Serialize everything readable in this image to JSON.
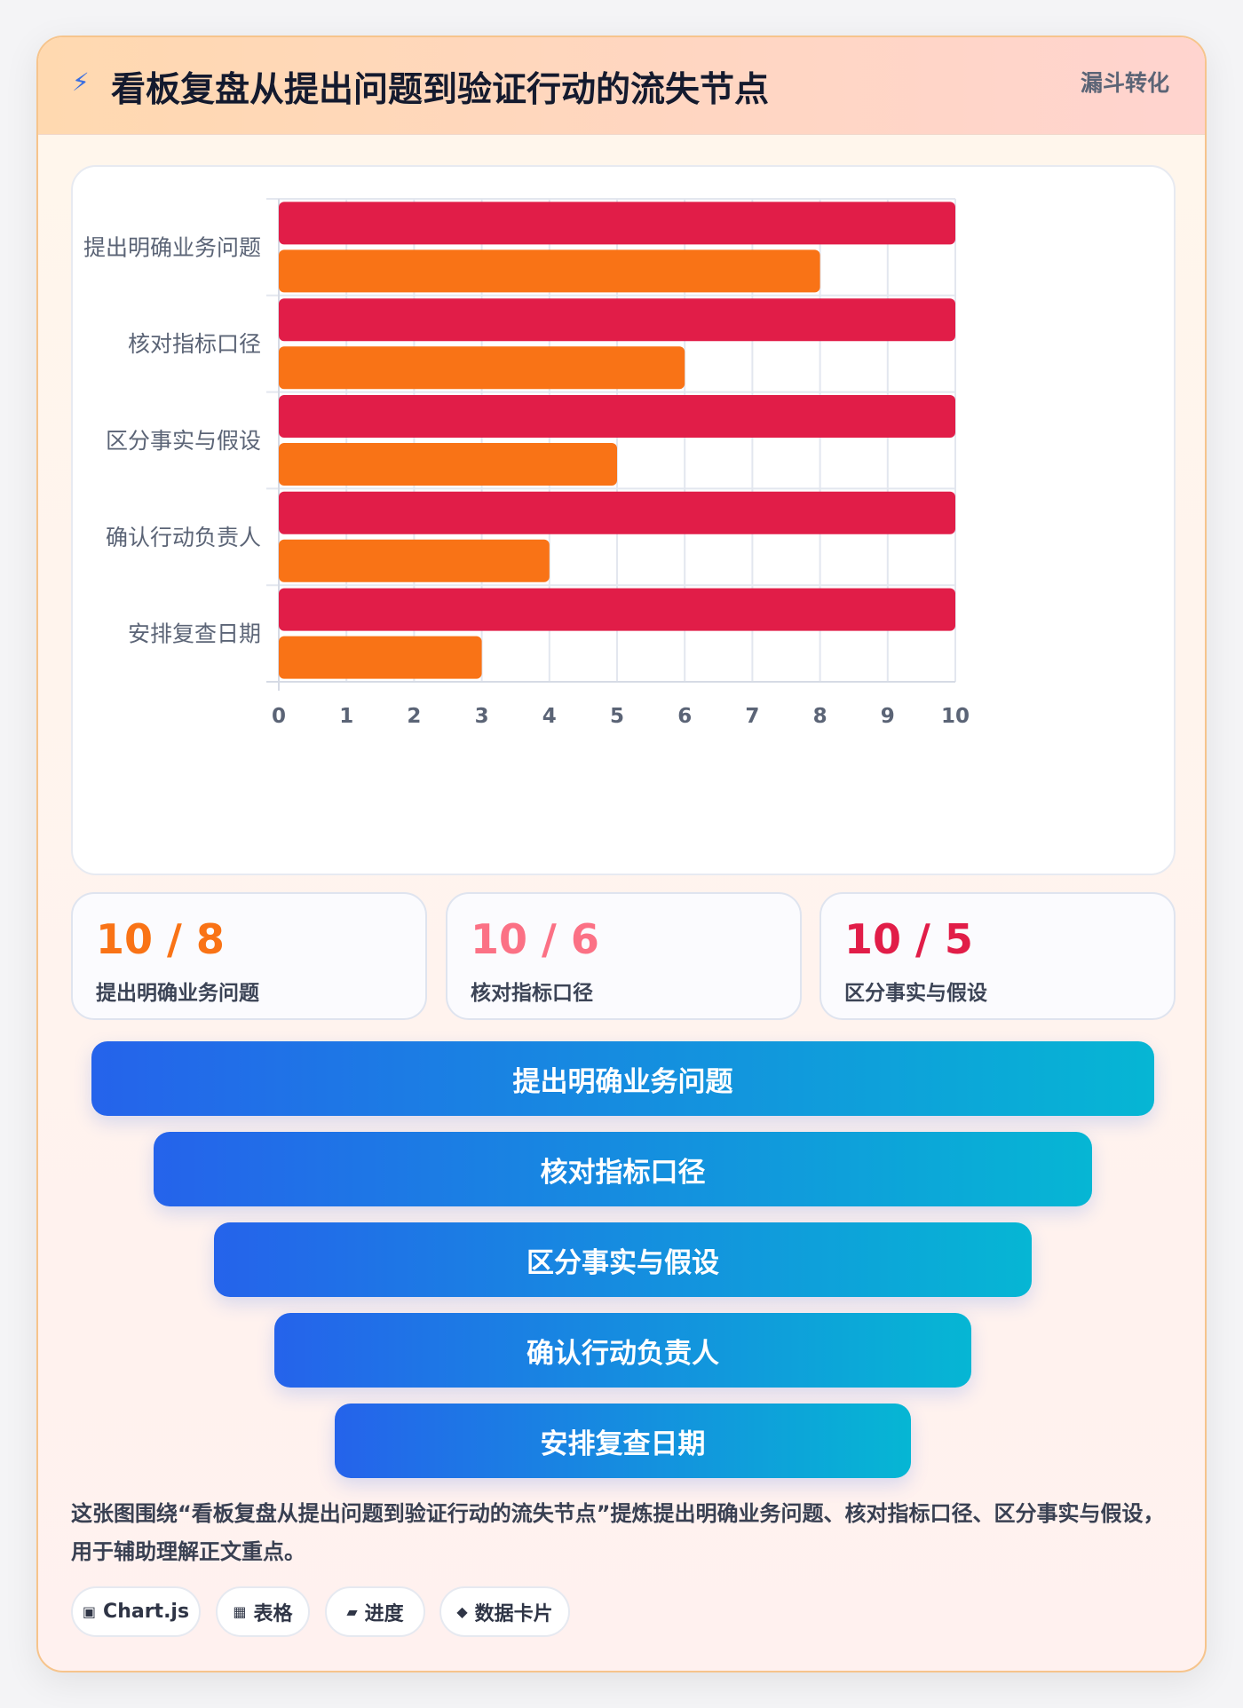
{
  "header": {
    "icon": "lightning-icon",
    "title": "看板复盘从提出问题到验证行动的流失节点",
    "tag": "漏斗转化"
  },
  "chart_data": {
    "type": "bar",
    "orientation": "horizontal",
    "categories": [
      "提出明确业务问题",
      "核对指标口径",
      "区分事实与假设",
      "确认行动负责人",
      "安排复查日期"
    ],
    "series": [
      {
        "values": [
          10,
          10,
          10,
          10,
          10
        ],
        "color": "#e11d48"
      },
      {
        "values": [
          8,
          6,
          5,
          4,
          3
        ],
        "color": "#f97316"
      }
    ],
    "xlim": [
      0,
      10
    ],
    "x_ticks": [
      0,
      1,
      2,
      3,
      4,
      5,
      6,
      7,
      8,
      9,
      10
    ],
    "grid": true,
    "legend": "none"
  },
  "stats": [
    {
      "value": "10 / 8",
      "label": "提出明确业务问题",
      "color": "#f97316"
    },
    {
      "value": "10 / 6",
      "label": "核对指标口径",
      "color": "#fb7185"
    },
    {
      "value": "10 / 5",
      "label": "区分事实与假设",
      "color": "#e11d48"
    }
  ],
  "funnel": [
    "提出明确业务问题",
    "核对指标口径",
    "区分事实与假设",
    "确认行动负责人",
    "安排复查日期"
  ],
  "caption": "这张图围绕“看板复盘从提出问题到验证行动的流失节点”提炼提出明确业务问题、核对指标口径、区分事实与假设，用于辅助理解正文重点。",
  "badges": [
    {
      "icon": "▣",
      "icon_name": "chart-icon",
      "label": "Chart.js"
    },
    {
      "icon": "▦",
      "icon_name": "table-icon",
      "label": "表格"
    },
    {
      "icon": "▰",
      "icon_name": "progress-icon",
      "label": "进度"
    },
    {
      "icon": "◆",
      "icon_name": "data-card-icon",
      "label": "数据卡片"
    }
  ]
}
